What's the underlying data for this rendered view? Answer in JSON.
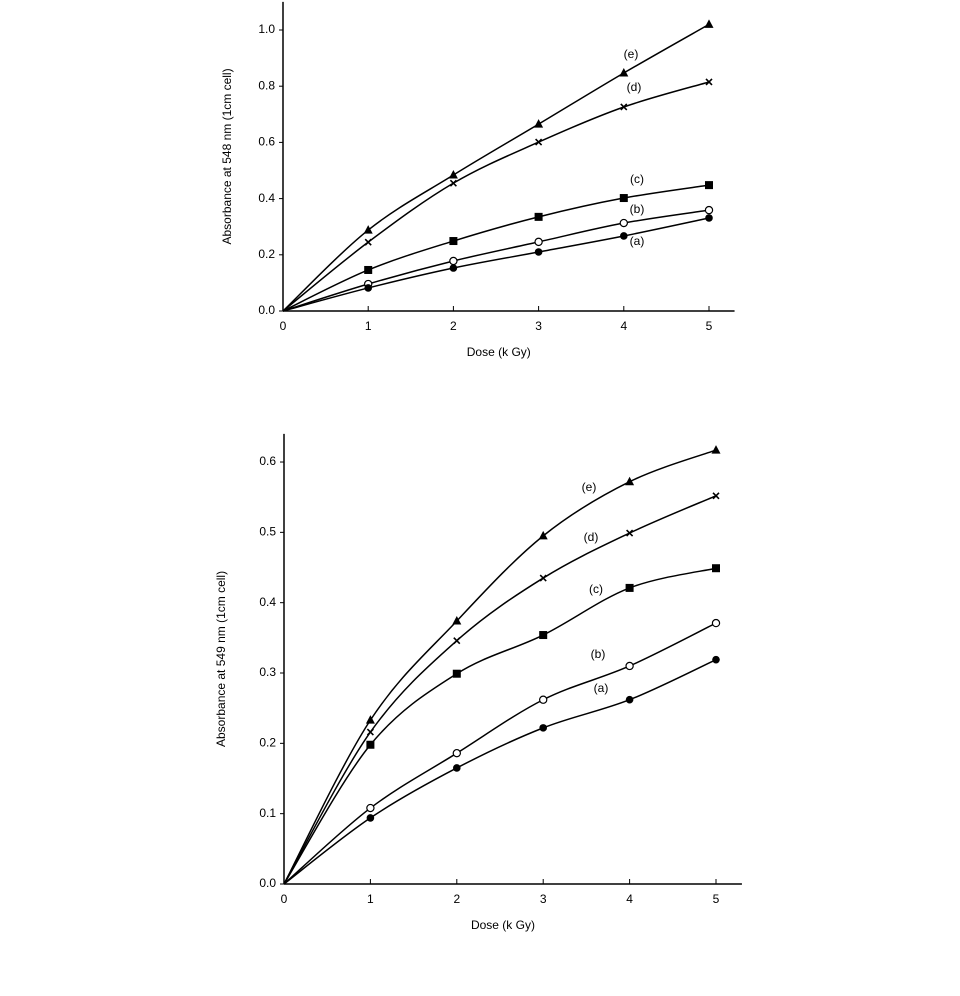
{
  "chart_data": [
    {
      "type": "line",
      "x_label": "Dose (k Gy)",
      "y_label": "Absorbance at 548 nm (1cm cell)",
      "x": [
        0,
        1,
        2,
        3,
        4,
        5
      ],
      "xlim": [
        0,
        5.3
      ],
      "ylim": [
        0,
        1.1
      ],
      "xticks": [
        0,
        1,
        2,
        3,
        4,
        5
      ],
      "yticks": [
        {
          "value": 0,
          "label": "0.0"
        },
        {
          "value": 0.2,
          "label": "0.2"
        },
        {
          "value": 0.4,
          "label": "0.4"
        },
        {
          "value": 0.6,
          "label": "0.6"
        },
        {
          "value": 0.8,
          "label": "0.8"
        },
        {
          "value": 1.0,
          "label": "1.0"
        }
      ],
      "series": [
        {
          "name": "(e)",
          "color": "#000000",
          "marker": "triangle",
          "values": [
            0,
            0.288,
            0.484,
            0.665,
            0.847,
            1.02
          ]
        },
        {
          "name": "(d)",
          "color": "#000000",
          "marker": "x",
          "values": [
            0,
            0.245,
            0.455,
            0.601,
            0.726,
            0.815
          ]
        },
        {
          "name": "(c)",
          "color": "#000000",
          "marker": "square",
          "values": [
            0,
            0.146,
            0.249,
            0.335,
            0.402,
            0.448
          ]
        },
        {
          "name": "(b)",
          "color": "#000000",
          "marker": "circle-open",
          "values": [
            0,
            0.096,
            0.178,
            0.246,
            0.313,
            0.359
          ]
        },
        {
          "name": "(a)",
          "color": "#000000",
          "marker": "circle",
          "values": [
            0,
            0.082,
            0.153,
            0.21,
            0.267,
            0.331
          ]
        }
      ]
    },
    {
      "type": "line",
      "x_label": "Dose (k Gy)",
      "y_label": "Absorbance at 549 nm (1cm cell)",
      "x": [
        0,
        1,
        2,
        3,
        4,
        5
      ],
      "xlim": [
        0,
        5.3
      ],
      "ylim": [
        0,
        0.64
      ],
      "xticks": [
        0,
        1,
        2,
        3,
        4,
        5
      ],
      "yticks": [
        {
          "value": 0,
          "label": "0.0"
        },
        {
          "value": 0.1,
          "label": "0.1"
        },
        {
          "value": 0.2,
          "label": "0.2"
        },
        {
          "value": 0.3,
          "label": "0.3"
        },
        {
          "value": 0.4,
          "label": "0.4"
        },
        {
          "value": 0.5,
          "label": "0.5"
        },
        {
          "value": 0.6,
          "label": "0.6"
        }
      ],
      "series": [
        {
          "name": "(e)",
          "color": "#000000",
          "marker": "triangle",
          "values": [
            0,
            0.233,
            0.374,
            0.495,
            0.572,
            0.617
          ]
        },
        {
          "name": "(d)",
          "color": "#000000",
          "marker": "x",
          "values": [
            0,
            0.216,
            0.346,
            0.435,
            0.499,
            0.552
          ]
        },
        {
          "name": "(c)",
          "color": "#000000",
          "marker": "square",
          "values": [
            0,
            0.198,
            0.299,
            0.354,
            0.421,
            0.449
          ]
        },
        {
          "name": "(b)",
          "color": "#000000",
          "marker": "circle-open",
          "values": [
            0,
            0.108,
            0.186,
            0.262,
            0.31,
            0.371
          ]
        },
        {
          "name": "(a)",
          "color": "#000000",
          "marker": "circle",
          "values": [
            0,
            0.094,
            0.165,
            0.222,
            0.262,
            0.319
          ]
        }
      ]
    }
  ]
}
